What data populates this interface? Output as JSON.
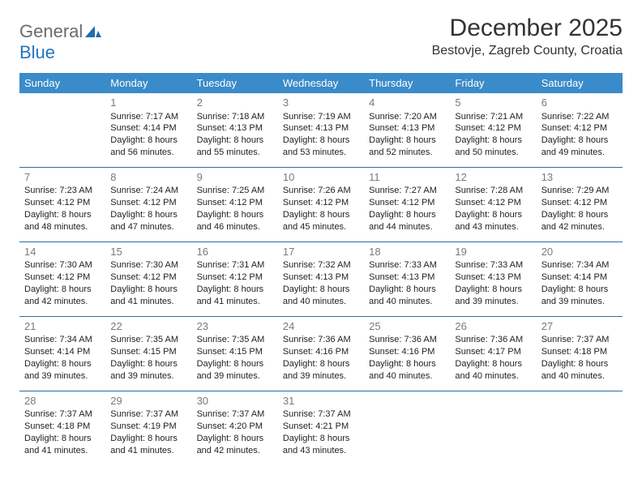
{
  "brand": {
    "name_a": "General",
    "name_b": "Blue",
    "text_color": "#6b6b6b",
    "accent_color": "#2176bd"
  },
  "title": "December 2025",
  "location": "Bestovje, Zagreb County, Croatia",
  "weekdays": [
    "Sunday",
    "Monday",
    "Tuesday",
    "Wednesday",
    "Thursday",
    "Friday",
    "Saturday"
  ],
  "header_bg": "#3a8bc9",
  "header_fg": "#ffffff",
  "row_border": "#2a6ea6",
  "daynum_color": "#7a7a7a",
  "body_text_color": "#222222",
  "weeks": [
    [
      null,
      {
        "n": "1",
        "sr": "Sunrise: 7:17 AM",
        "ss": "Sunset: 4:14 PM",
        "d1": "Daylight: 8 hours",
        "d2": "and 56 minutes."
      },
      {
        "n": "2",
        "sr": "Sunrise: 7:18 AM",
        "ss": "Sunset: 4:13 PM",
        "d1": "Daylight: 8 hours",
        "d2": "and 55 minutes."
      },
      {
        "n": "3",
        "sr": "Sunrise: 7:19 AM",
        "ss": "Sunset: 4:13 PM",
        "d1": "Daylight: 8 hours",
        "d2": "and 53 minutes."
      },
      {
        "n": "4",
        "sr": "Sunrise: 7:20 AM",
        "ss": "Sunset: 4:13 PM",
        "d1": "Daylight: 8 hours",
        "d2": "and 52 minutes."
      },
      {
        "n": "5",
        "sr": "Sunrise: 7:21 AM",
        "ss": "Sunset: 4:12 PM",
        "d1": "Daylight: 8 hours",
        "d2": "and 50 minutes."
      },
      {
        "n": "6",
        "sr": "Sunrise: 7:22 AM",
        "ss": "Sunset: 4:12 PM",
        "d1": "Daylight: 8 hours",
        "d2": "and 49 minutes."
      }
    ],
    [
      {
        "n": "7",
        "sr": "Sunrise: 7:23 AM",
        "ss": "Sunset: 4:12 PM",
        "d1": "Daylight: 8 hours",
        "d2": "and 48 minutes."
      },
      {
        "n": "8",
        "sr": "Sunrise: 7:24 AM",
        "ss": "Sunset: 4:12 PM",
        "d1": "Daylight: 8 hours",
        "d2": "and 47 minutes."
      },
      {
        "n": "9",
        "sr": "Sunrise: 7:25 AM",
        "ss": "Sunset: 4:12 PM",
        "d1": "Daylight: 8 hours",
        "d2": "and 46 minutes."
      },
      {
        "n": "10",
        "sr": "Sunrise: 7:26 AM",
        "ss": "Sunset: 4:12 PM",
        "d1": "Daylight: 8 hours",
        "d2": "and 45 minutes."
      },
      {
        "n": "11",
        "sr": "Sunrise: 7:27 AM",
        "ss": "Sunset: 4:12 PM",
        "d1": "Daylight: 8 hours",
        "d2": "and 44 minutes."
      },
      {
        "n": "12",
        "sr": "Sunrise: 7:28 AM",
        "ss": "Sunset: 4:12 PM",
        "d1": "Daylight: 8 hours",
        "d2": "and 43 minutes."
      },
      {
        "n": "13",
        "sr": "Sunrise: 7:29 AM",
        "ss": "Sunset: 4:12 PM",
        "d1": "Daylight: 8 hours",
        "d2": "and 42 minutes."
      }
    ],
    [
      {
        "n": "14",
        "sr": "Sunrise: 7:30 AM",
        "ss": "Sunset: 4:12 PM",
        "d1": "Daylight: 8 hours",
        "d2": "and 42 minutes."
      },
      {
        "n": "15",
        "sr": "Sunrise: 7:30 AM",
        "ss": "Sunset: 4:12 PM",
        "d1": "Daylight: 8 hours",
        "d2": "and 41 minutes."
      },
      {
        "n": "16",
        "sr": "Sunrise: 7:31 AM",
        "ss": "Sunset: 4:12 PM",
        "d1": "Daylight: 8 hours",
        "d2": "and 41 minutes."
      },
      {
        "n": "17",
        "sr": "Sunrise: 7:32 AM",
        "ss": "Sunset: 4:13 PM",
        "d1": "Daylight: 8 hours",
        "d2": "and 40 minutes."
      },
      {
        "n": "18",
        "sr": "Sunrise: 7:33 AM",
        "ss": "Sunset: 4:13 PM",
        "d1": "Daylight: 8 hours",
        "d2": "and 40 minutes."
      },
      {
        "n": "19",
        "sr": "Sunrise: 7:33 AM",
        "ss": "Sunset: 4:13 PM",
        "d1": "Daylight: 8 hours",
        "d2": "and 39 minutes."
      },
      {
        "n": "20",
        "sr": "Sunrise: 7:34 AM",
        "ss": "Sunset: 4:14 PM",
        "d1": "Daylight: 8 hours",
        "d2": "and 39 minutes."
      }
    ],
    [
      {
        "n": "21",
        "sr": "Sunrise: 7:34 AM",
        "ss": "Sunset: 4:14 PM",
        "d1": "Daylight: 8 hours",
        "d2": "and 39 minutes."
      },
      {
        "n": "22",
        "sr": "Sunrise: 7:35 AM",
        "ss": "Sunset: 4:15 PM",
        "d1": "Daylight: 8 hours",
        "d2": "and 39 minutes."
      },
      {
        "n": "23",
        "sr": "Sunrise: 7:35 AM",
        "ss": "Sunset: 4:15 PM",
        "d1": "Daylight: 8 hours",
        "d2": "and 39 minutes."
      },
      {
        "n": "24",
        "sr": "Sunrise: 7:36 AM",
        "ss": "Sunset: 4:16 PM",
        "d1": "Daylight: 8 hours",
        "d2": "and 39 minutes."
      },
      {
        "n": "25",
        "sr": "Sunrise: 7:36 AM",
        "ss": "Sunset: 4:16 PM",
        "d1": "Daylight: 8 hours",
        "d2": "and 40 minutes."
      },
      {
        "n": "26",
        "sr": "Sunrise: 7:36 AM",
        "ss": "Sunset: 4:17 PM",
        "d1": "Daylight: 8 hours",
        "d2": "and 40 minutes."
      },
      {
        "n": "27",
        "sr": "Sunrise: 7:37 AM",
        "ss": "Sunset: 4:18 PM",
        "d1": "Daylight: 8 hours",
        "d2": "and 40 minutes."
      }
    ],
    [
      {
        "n": "28",
        "sr": "Sunrise: 7:37 AM",
        "ss": "Sunset: 4:18 PM",
        "d1": "Daylight: 8 hours",
        "d2": "and 41 minutes."
      },
      {
        "n": "29",
        "sr": "Sunrise: 7:37 AM",
        "ss": "Sunset: 4:19 PM",
        "d1": "Daylight: 8 hours",
        "d2": "and 41 minutes."
      },
      {
        "n": "30",
        "sr": "Sunrise: 7:37 AM",
        "ss": "Sunset: 4:20 PM",
        "d1": "Daylight: 8 hours",
        "d2": "and 42 minutes."
      },
      {
        "n": "31",
        "sr": "Sunrise: 7:37 AM",
        "ss": "Sunset: 4:21 PM",
        "d1": "Daylight: 8 hours",
        "d2": "and 43 minutes."
      },
      null,
      null,
      null
    ]
  ]
}
